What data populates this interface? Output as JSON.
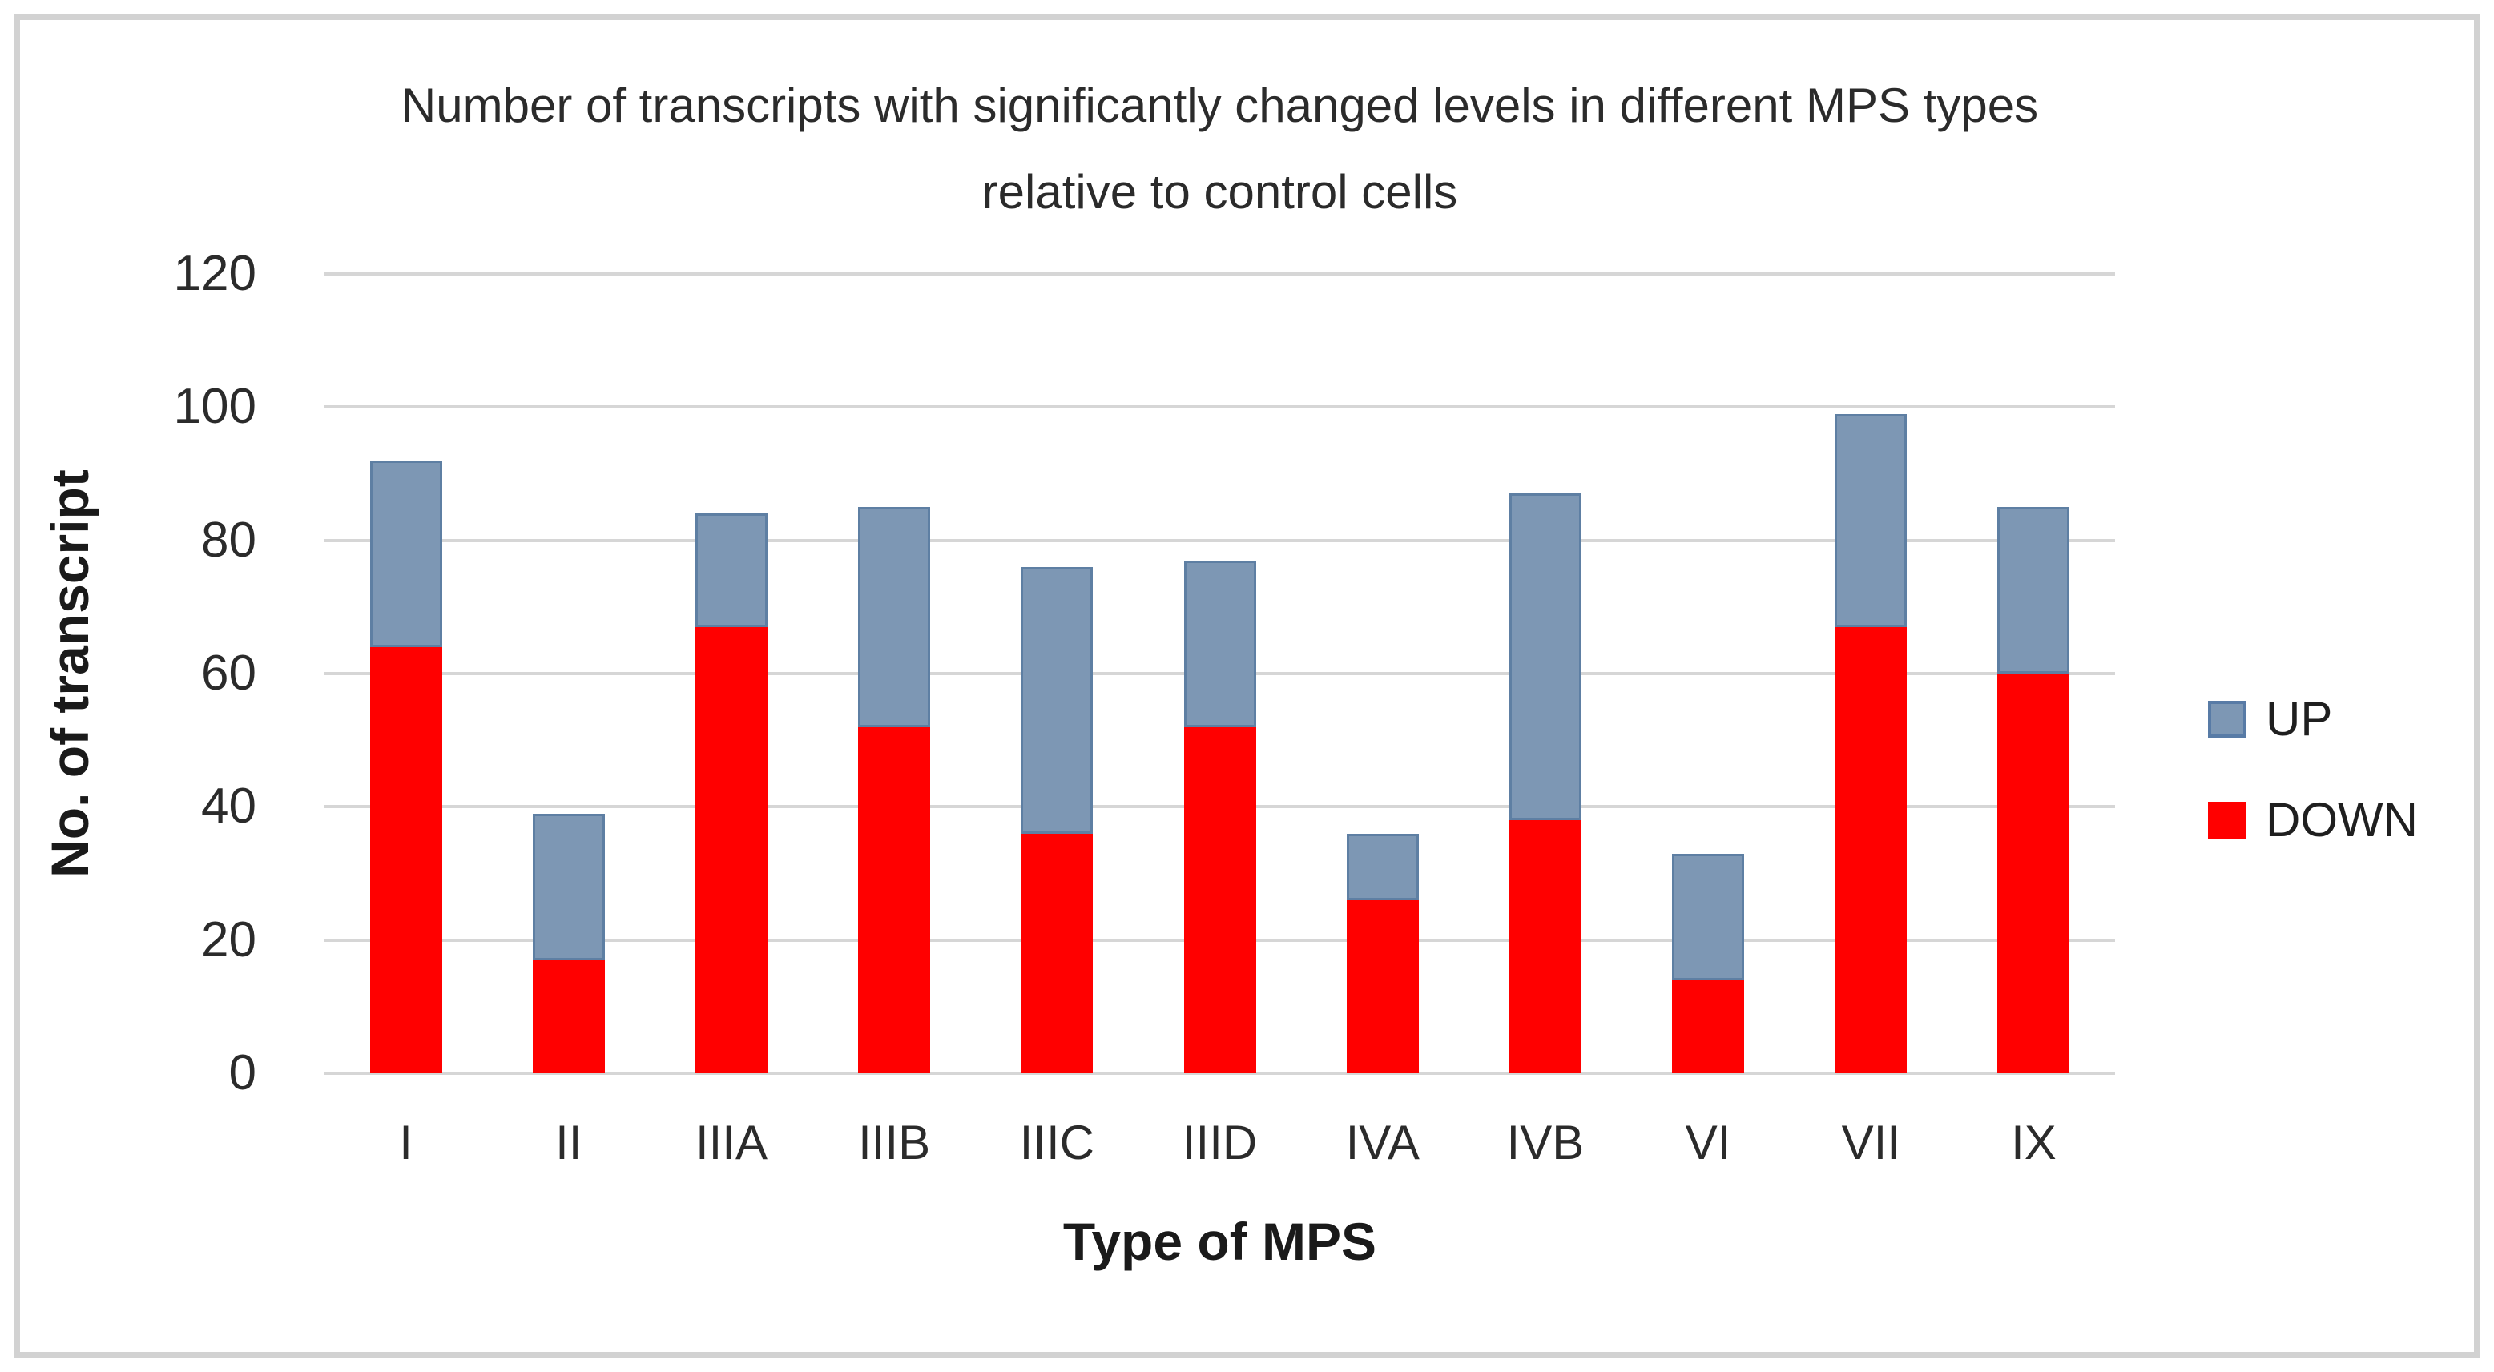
{
  "figure": {
    "background": "#ffffff",
    "frame_color": "#d2d2d2"
  },
  "chart_data": {
    "type": "bar",
    "stacked": true,
    "title": "Number of transcripts with significantly changed levels in different MPS types relative to control cells",
    "xlabel": "Type of MPS",
    "ylabel": "No. of transcript",
    "categories": [
      "I",
      "II",
      "IIIA",
      "IIIB",
      "IIIC",
      "IIID",
      "IVA",
      "IVB",
      "VI",
      "VII",
      "IX"
    ],
    "series": [
      {
        "name": "UP",
        "color": "#7d97b4",
        "border_color": "#5e7fa3",
        "values": [
          28,
          22,
          17,
          33,
          40,
          25,
          10,
          49,
          19,
          32,
          25
        ]
      },
      {
        "name": "DOWN",
        "color": "#ff0000",
        "border_color": "#ff0000",
        "values": [
          64,
          17,
          67,
          52,
          36,
          52,
          26,
          38,
          14,
          67,
          60
        ]
      }
    ],
    "totals": [
      92,
      39,
      84,
      85,
      76,
      77,
      36,
      87,
      33,
      99,
      85
    ],
    "ylim": [
      0,
      120
    ],
    "yticks": [
      0,
      20,
      40,
      60,
      80,
      100,
      120
    ],
    "grid": true,
    "gridline_color": "#d6d6d6",
    "legend_position": "right",
    "legend": [
      {
        "label": "UP",
        "color": "#7d97b4",
        "border_color": "#587ba6"
      },
      {
        "label": "DOWN",
        "color": "#ff0000",
        "border_color": "#ff0000"
      }
    ]
  }
}
